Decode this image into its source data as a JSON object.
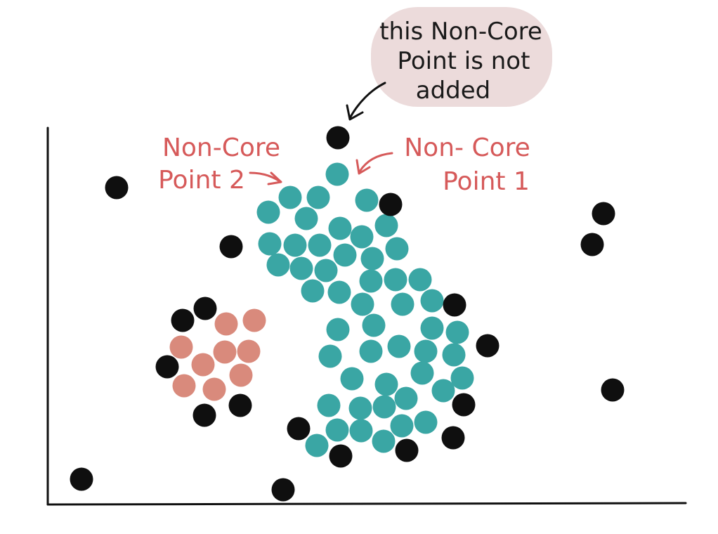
{
  "colors": {
    "core": "#3aa6a4",
    "noise": "#0f0f0f",
    "cluster2": "#d98a7c",
    "label": "#d65a5a",
    "bubble": "#ecdbdb",
    "axis": "#111111"
  },
  "labels": {
    "non_core_point_2": [
      "Non-Core",
      "Point 2"
    ],
    "non_core_point_1": [
      "Non- Core",
      "Point 1"
    ],
    "callout": [
      "this Non-Core",
      "Point is not",
      "added"
    ]
  },
  "points": {
    "core_cluster_count": 56,
    "small_cluster_count": 12,
    "noise_count": 26
  }
}
